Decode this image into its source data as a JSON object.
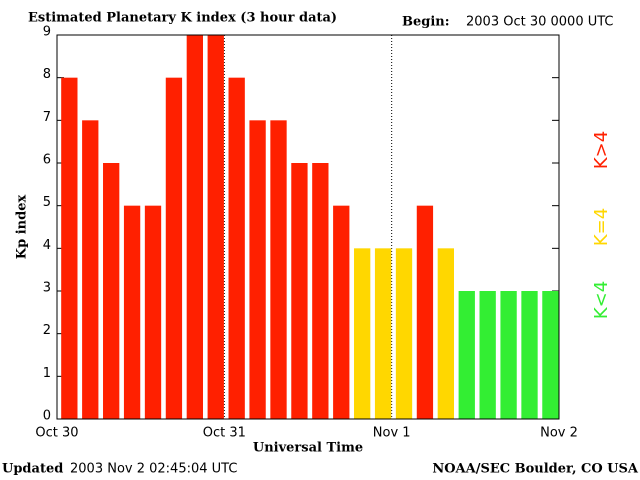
{
  "chart_data": {
    "type": "bar",
    "title": "Estimated Planetary K index (3 hour data)",
    "begin_label": "Begin:",
    "begin_value": "2003 Oct 30 0000 UTC",
    "x_label": "Universal Time",
    "y_label": "Kp index",
    "updated_label": "Updated",
    "updated_value": "2003 Nov  2 02:45:04 UTC",
    "credit": "NOAA/SEC Boulder, CO USA",
    "x": [
      0,
      3,
      6,
      9,
      12,
      15,
      18,
      21,
      24,
      27,
      30,
      33,
      36,
      39,
      42,
      45,
      48,
      51,
      54,
      57,
      60,
      63,
      66,
      69
    ],
    "values": [
      8,
      7,
      6,
      5,
      5,
      8,
      9,
      9,
      8,
      7,
      7,
      6,
      6,
      5,
      4,
      4,
      4,
      5,
      4,
      3,
      3,
      3,
      3,
      3
    ],
    "bar_colors": [
      "#ff2000",
      "#ff2000",
      "#ff2000",
      "#ff2000",
      "#ff2000",
      "#ff2000",
      "#ff2000",
      "#ff2000",
      "#ff2000",
      "#ff2000",
      "#ff2000",
      "#ff2000",
      "#ff2000",
      "#ff2000",
      "#ffd700",
      "#ffd700",
      "#ffd700",
      "#ff2000",
      "#ffd700",
      "#33ee33",
      "#33ee33",
      "#33ee33",
      "#33ee33",
      "#33ee33"
    ],
    "bar_span": 3,
    "xlim": [
      0,
      72
    ],
    "xticks": [
      {
        "value": 0,
        "label": "Oct 30"
      },
      {
        "value": 24,
        "label": "Oct 31"
      },
      {
        "value": 48,
        "label": "Nov 1"
      },
      {
        "value": 72,
        "label": "Nov 2"
      }
    ],
    "ylim": [
      0,
      9
    ],
    "yticks": [
      0,
      1,
      2,
      3,
      4,
      5,
      6,
      7,
      8,
      9
    ],
    "legend": [
      {
        "label": "K<4",
        "color": "#33ee33"
      },
      {
        "label": "K=4",
        "color": "#ffd700"
      },
      {
        "label": "K>4",
        "color": "#ff2000"
      }
    ]
  }
}
